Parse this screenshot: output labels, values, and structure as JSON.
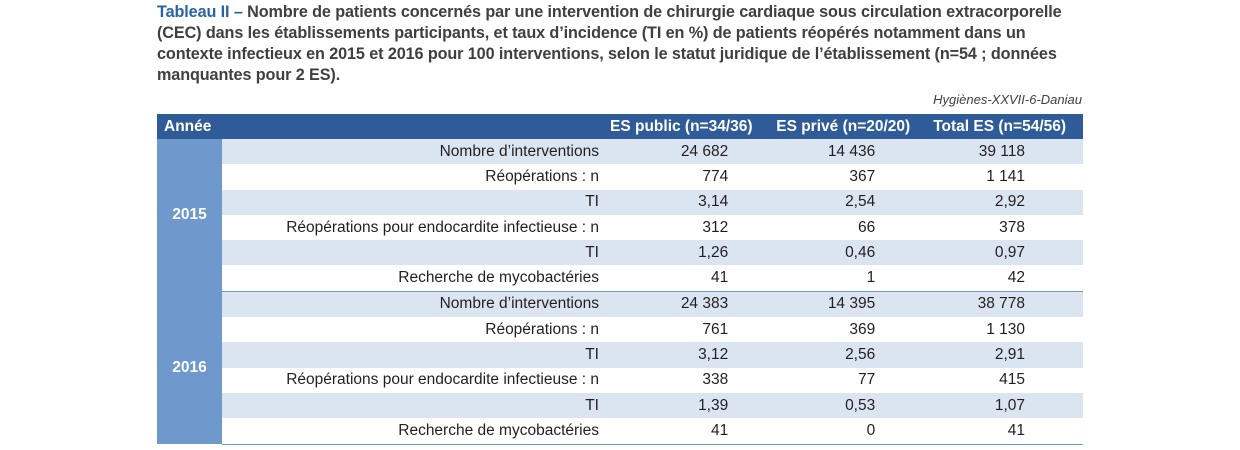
{
  "caption": {
    "lead": "Tableau II –",
    "text": " Nombre de patients concernés par une intervention de chirurgie cardiaque sous circulation extracor­porelle (CEC) dans les établissements participants, et taux d’incidence (TI en %) de patients réopérés notamment dans un contexte infectieux en 2015 et 2016 pour 100 interventions, selon le statut juridique de l’établissement (n=54 ; données manquantes pour 2 ES)."
  },
  "source": "Hygiènes-XXVII-6-Daniau",
  "table": {
    "headers": [
      "Année",
      "",
      "ES public (n=34/36)",
      "ES privé (n=20/20)",
      "Total ES (n=54/56)"
    ],
    "groups": [
      {
        "year": "2015",
        "rows": [
          {
            "label": "Nombre d’interventions",
            "values": [
              "24 682",
              "14 436",
              "39 118"
            ]
          },
          {
            "label": "Réopérations : n",
            "values": [
              "774",
              "367",
              "1 141"
            ]
          },
          {
            "label": "TI",
            "values": [
              "3,14",
              "2,54",
              "2,92"
            ]
          },
          {
            "label": "Réopérations pour endocardite infectieuse : n",
            "values": [
              "312",
              "66",
              "378"
            ]
          },
          {
            "label": "TI",
            "values": [
              "1,26",
              "0,46",
              "0,97"
            ]
          },
          {
            "label": "Recherche de mycobactéries",
            "values": [
              "41",
              "1",
              "42"
            ]
          }
        ]
      },
      {
        "year": "2016",
        "rows": [
          {
            "label": "Nombre d’interventions",
            "values": [
              "24 383",
              "14 395",
              "38 778"
            ]
          },
          {
            "label": "Réopérations : n",
            "values": [
              "761",
              "369",
              "1 130"
            ]
          },
          {
            "label": "TI",
            "values": [
              "3,12",
              "2,56",
              "2,91"
            ]
          },
          {
            "label": "Réopérations pour endocardite infectieuse : n",
            "values": [
              "338",
              "77",
              "415"
            ]
          },
          {
            "label": "TI",
            "values": [
              "1,39",
              "0,53",
              "1,07"
            ]
          },
          {
            "label": "Recherche de mycobactéries",
            "values": [
              "41",
              "0",
              "41"
            ]
          }
        ]
      }
    ]
  },
  "colors": {
    "caption_lead": "#2b62a6",
    "header_bg": "#2f5c98",
    "year_bg": "#6f99cc",
    "row_shade": "#dbe4f1"
  }
}
